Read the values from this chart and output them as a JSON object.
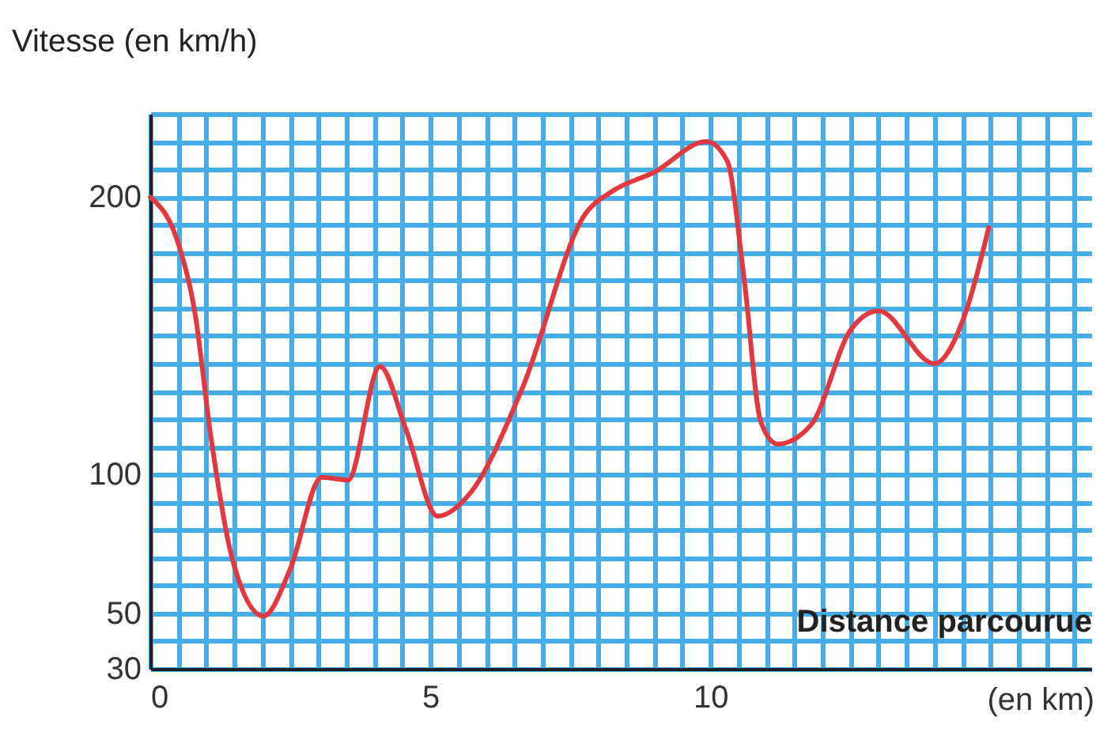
{
  "chart_data": {
    "type": "line",
    "ylabel": "Vitesse (en km/h)",
    "xlabel": "Distance parcourue",
    "annotations": [
      "(en km)"
    ],
    "x": [
      0,
      0.52,
      0.8,
      1.08,
      1.46,
      2.02,
      2.5,
      3.06,
      3.53,
      4.1,
      4.57,
      5.13,
      5.7,
      6.64,
      7.77,
      8.24,
      9.0,
      9.93,
      10.3,
      10.6,
      10.9,
      11.2,
      11.8,
      12.5,
      13.0,
      14.0,
      14.55,
      14.97
    ],
    "series": [
      {
        "color": "#e2383f",
        "values": [
          200,
          182,
          158,
          114,
          70,
          49,
          66,
          99,
          98,
          139,
          116,
          85,
          93,
          131,
          194,
          202,
          209,
          220,
          213,
          171,
          119,
          111,
          118,
          152,
          159,
          140,
          158,
          189
        ]
      }
    ],
    "xlim": [
      0,
      16.8
    ],
    "ylim": [
      30,
      230
    ],
    "grid": true,
    "marker": "none",
    "line_style": "solid",
    "xticks": [
      0,
      {
        "value": 0.5,
        "label": null
      },
      {
        "value": 1,
        "label": null
      },
      {
        "value": 1.5,
        "label": null
      },
      {
        "value": 2,
        "label": null
      },
      {
        "value": 2.5,
        "label": null
      },
      {
        "value": 3,
        "label": null
      },
      {
        "value": 3.5,
        "label": null
      },
      {
        "value": 4,
        "label": null
      },
      {
        "value": 4.5,
        "label": null
      },
      5,
      {
        "value": 5.5,
        "label": null
      },
      {
        "value": 6,
        "label": null
      },
      {
        "value": 6.5,
        "label": null
      },
      {
        "value": 7,
        "label": null
      },
      {
        "value": 7.5,
        "label": null
      },
      {
        "value": 8,
        "label": null
      },
      {
        "value": 8.5,
        "label": null
      },
      {
        "value": 9,
        "label": null
      },
      {
        "value": 9.5,
        "label": null
      },
      10,
      {
        "value": 10.5,
        "label": null
      },
      {
        "value": 11,
        "label": null
      },
      {
        "value": 11.5,
        "label": null
      },
      {
        "value": 12,
        "label": null
      },
      {
        "value": 12.5,
        "label": null
      },
      {
        "value": 13,
        "label": null
      },
      {
        "value": 13.5,
        "label": null
      },
      {
        "value": 14,
        "label": null
      },
      {
        "value": 14.5,
        "label": null
      },
      {
        "value": 15,
        "label": null
      },
      {
        "value": 15.5,
        "label": null
      },
      {
        "value": 16,
        "label": null
      },
      {
        "value": 16.5,
        "label": null
      }
    ],
    "yticks": [
      30,
      {
        "value": 40,
        "label": null
      },
      50,
      {
        "value": 60,
        "label": null
      },
      {
        "value": 70,
        "label": null
      },
      {
        "value": 80,
        "label": null
      },
      {
        "value": 90,
        "label": null
      },
      100,
      {
        "value": 110,
        "label": null
      },
      {
        "value": 120,
        "label": null
      },
      {
        "value": 130,
        "label": null
      },
      {
        "value": 140,
        "label": null
      },
      {
        "value": 150,
        "label": null
      },
      {
        "value": 160,
        "label": null
      },
      {
        "value": 170,
        "label": null
      },
      {
        "value": 180,
        "label": null
      },
      {
        "value": 190,
        "label": null
      },
      200,
      {
        "value": 210,
        "label": null
      },
      {
        "value": 220,
        "label": null
      },
      {
        "value": 230,
        "label": null
      }
    ]
  }
}
